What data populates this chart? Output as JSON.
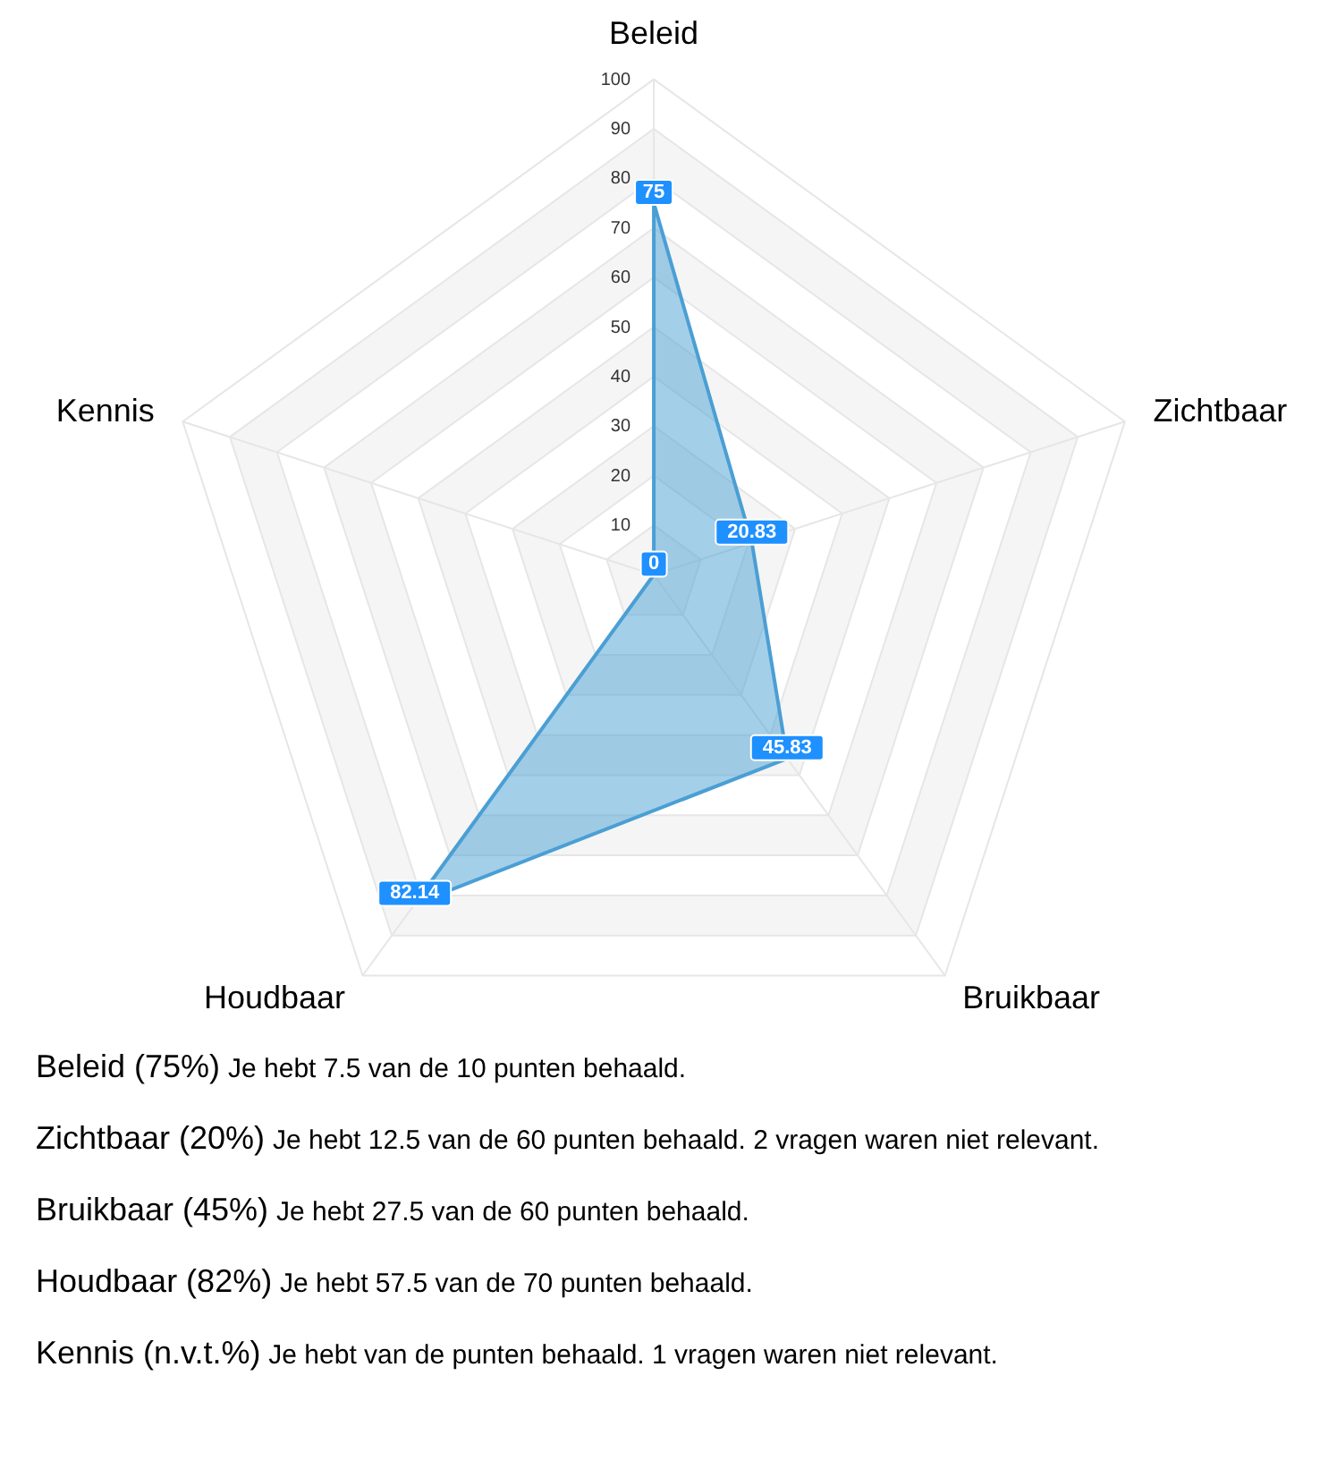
{
  "chart_data": {
    "type": "radar",
    "categories": [
      "Beleid",
      "Zichtbaar",
      "Bruikbaar",
      "Houdbaar",
      "Kennis"
    ],
    "series": [
      {
        "color": "#4a9fd4",
        "values": [
          75,
          20.83,
          45.83,
          82.14,
          0
        ]
      }
    ],
    "ylim": [
      0,
      100
    ],
    "yticks": [
      10,
      20,
      30,
      40,
      50,
      60,
      70,
      80,
      90,
      100
    ],
    "grid": true,
    "data_labels": true,
    "annotations": [
      "Beleid (75%)",
      "Je hebt 7.5 van de 10 punten behaald.",
      "Zichtbaar (20%)",
      "Je hebt 12.5 van de 60 punten behaald. 2 vragen waren niet relevant.",
      "Bruikbaar (45%)",
      "Je hebt 27.5 van de 60 punten behaald.",
      "Houdbaar (82%)",
      "Je hebt 57.5 van de 70 punten behaald.",
      "Kennis (n.v.t.%)",
      "Je hebt van de punten behaald. 1 vragen waren niet relevant."
    ]
  }
}
